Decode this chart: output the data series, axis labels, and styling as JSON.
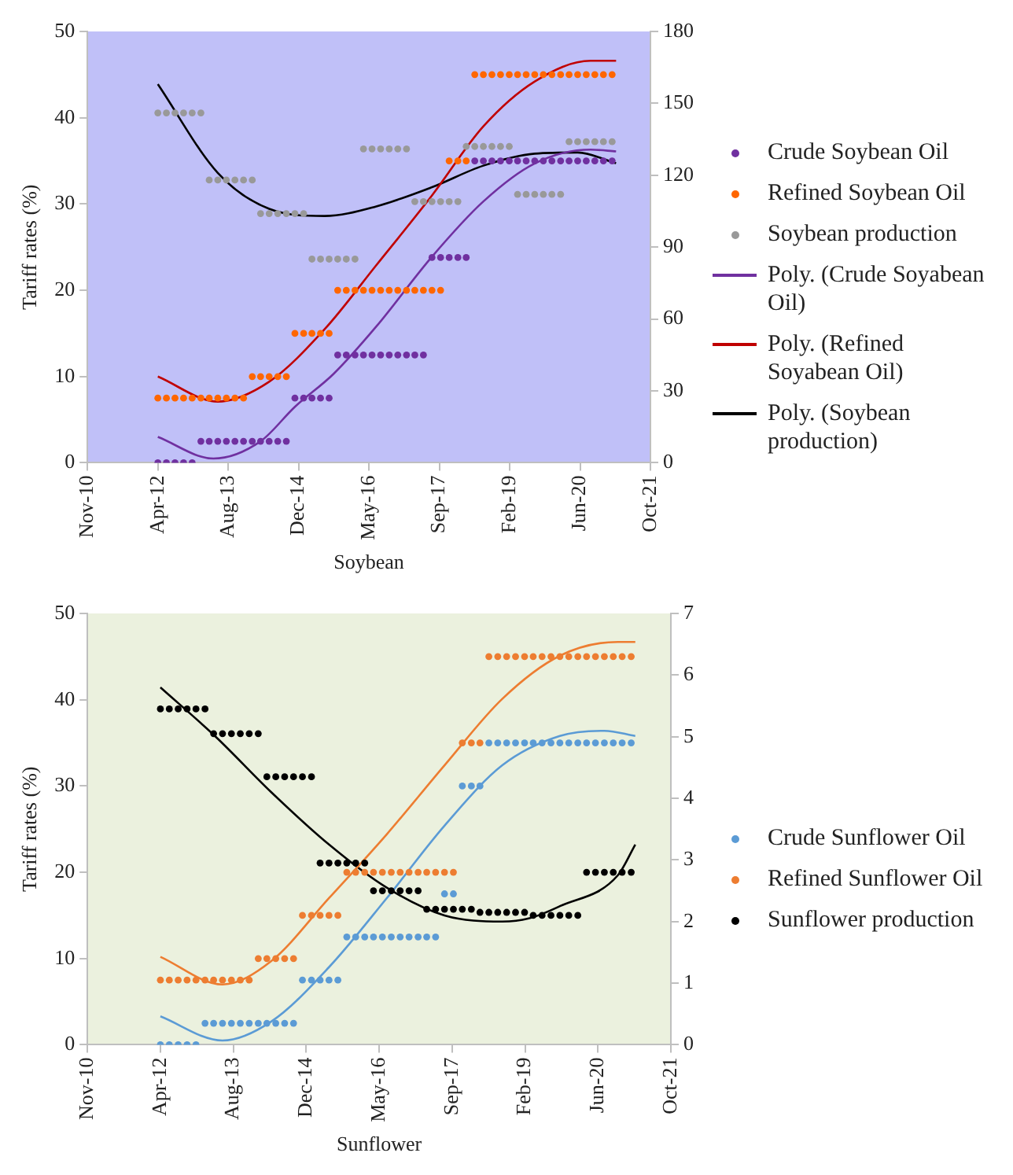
{
  "chart_data": [
    {
      "type": "scatter",
      "xlabel": "Soybean",
      "ylabel": "Tariff rates (%)",
      "marker": "circle",
      "legend": "right",
      "x": [
        "2012-04",
        "2012-06",
        "2012-08",
        "2012-10",
        "2012-12",
        "2013-02",
        "2013-04",
        "2013-06",
        "2013-08",
        "2013-10",
        "2013-12",
        "2014-02",
        "2014-04",
        "2014-06",
        "2014-08",
        "2014-10",
        "2014-12",
        "2015-02",
        "2015-04",
        "2015-06",
        "2015-08",
        "2015-10",
        "2015-12",
        "2016-02",
        "2016-04",
        "2016-06",
        "2016-08",
        "2016-10",
        "2016-12",
        "2017-02",
        "2017-04",
        "2017-06",
        "2017-08",
        "2017-10",
        "2017-12",
        "2018-02",
        "2018-04",
        "2018-06",
        "2018-08",
        "2018-10",
        "2018-12",
        "2019-02",
        "2019-04",
        "2019-06",
        "2019-08",
        "2019-10",
        "2019-12",
        "2020-02",
        "2020-04",
        "2020-06",
        "2020-08",
        "2020-10",
        "2020-12",
        "2021-02"
      ],
      "xlim": [
        "2010-11-18",
        "2021-10-31"
      ],
      "xticks": [
        {
          "value": "2010-11-18",
          "label": "Nov-10"
        },
        {
          "value": "2012-04-01",
          "label": "Apr-12"
        },
        {
          "value": "2013-08-14",
          "label": "Aug-13"
        },
        {
          "value": "2014-12-27",
          "label": "Dec-14"
        },
        {
          "value": "2016-05-10",
          "label": "May-16"
        },
        {
          "value": "2017-09-22",
          "label": "Sep-17"
        },
        {
          "value": "2019-02-04",
          "label": "Feb-19"
        },
        {
          "value": "2020-06-18",
          "label": "Jun-20"
        },
        {
          "value": "2021-10-31",
          "label": "Oct-21"
        }
      ],
      "ylim": [
        0,
        50
      ],
      "yticks": [
        0,
        10,
        20,
        30,
        40,
        50
      ],
      "y2lim": [
        0,
        180
      ],
      "y2ticks": [
        0,
        30,
        60,
        90,
        120,
        150,
        180
      ],
      "series": [
        {
          "name": "Crude Soybean Oil",
          "color": "#7030a0",
          "values": [
            0,
            0,
            0,
            0,
            0,
            2.5,
            2.5,
            2.5,
            2.5,
            2.5,
            2.5,
            2.5,
            2.5,
            2.5,
            2.5,
            2.5,
            7.5,
            7.5,
            7.5,
            7.5,
            7.5,
            12.5,
            12.5,
            12.5,
            12.5,
            12.5,
            12.5,
            12.5,
            12.5,
            12.5,
            12.5,
            12.5,
            23.8,
            23.8,
            23.8,
            23.8,
            23.8,
            35,
            35,
            35,
            35,
            35,
            35,
            35,
            35,
            35,
            35,
            35,
            35,
            35,
            35,
            35,
            35,
            35
          ]
        },
        {
          "name": "Refined Soybean Oil",
          "color": "#ff6600",
          "values": [
            7.5,
            7.5,
            7.5,
            7.5,
            7.5,
            7.5,
            7.5,
            7.5,
            7.5,
            7.5,
            7.5,
            10,
            10,
            10,
            10,
            10,
            15,
            15,
            15,
            15,
            15,
            20,
            20,
            20,
            20,
            20,
            20,
            20,
            20,
            20,
            20,
            20,
            20,
            20,
            35,
            35,
            35,
            45,
            45,
            45,
            45,
            45,
            45,
            45,
            45,
            45,
            45,
            45,
            45,
            45,
            45,
            45,
            45,
            45
          ]
        },
        {
          "name": "Soybean production",
          "color": "#999999",
          "axis": "y2",
          "values": [
            146,
            146,
            146,
            146,
            146,
            146,
            118,
            118,
            118,
            118,
            118,
            118,
            104,
            104,
            104,
            104,
            104,
            104,
            85,
            85,
            85,
            85,
            85,
            85,
            131,
            131,
            131,
            131,
            131,
            131,
            109,
            109,
            109,
            109,
            109,
            109,
            132,
            132,
            132,
            132,
            132,
            132,
            112,
            112,
            112,
            112,
            112,
            112,
            134,
            134,
            134,
            134,
            134,
            134
          ]
        },
        {
          "name": "Poly. (Crude Soyabean Oil)",
          "type": "line",
          "marker": "none",
          "color": "#7030a0",
          "x": [
            "2012-04",
            "2013-05",
            "2014-04",
            "2014-12",
            "2015-09",
            "2016-07",
            "2017-08",
            "2018-08",
            "2019-08",
            "2020-09",
            "2021-03"
          ],
          "values": [
            3,
            0.5,
            2.5,
            6.5,
            10.3,
            15.8,
            23.9,
            30.3,
            34.7,
            36.3,
            36.1
          ]
        },
        {
          "name": "Poly. (Refined Soyabean Oil)",
          "type": "line",
          "marker": "none",
          "color": "#c00000",
          "x": [
            "2012-04",
            "2013-06",
            "2014-06",
            "2015-07",
            "2016-07",
            "2017-08",
            "2018-08",
            "2019-08",
            "2020-09",
            "2021-03"
          ],
          "values": [
            10,
            7.1,
            9.4,
            15.5,
            22.9,
            31,
            39,
            44.2,
            46.6,
            46.6
          ]
        },
        {
          "name": "Poly. (Soybean production)",
          "type": "line",
          "marker": "none",
          "color": "#000000",
          "axis": "y2",
          "x": [
            "2012-04",
            "2013-06",
            "2014-06",
            "2015-07",
            "2016-07",
            "2017-08",
            "2018-08",
            "2019-08",
            "2020-06",
            "2021-03"
          ],
          "values": [
            158,
            121,
            106,
            103,
            107,
            115,
            124,
            129,
            129.5,
            125
          ]
        }
      ]
    },
    {
      "type": "scatter",
      "xlabel": "Sunflower",
      "ylabel": "Tariff rates (%)",
      "marker": "circle",
      "legend": "right",
      "x": [
        "2012-04",
        "2012-06",
        "2012-08",
        "2012-10",
        "2012-12",
        "2013-02",
        "2013-04",
        "2013-06",
        "2013-08",
        "2013-10",
        "2013-12",
        "2014-02",
        "2014-04",
        "2014-06",
        "2014-08",
        "2014-10",
        "2014-12",
        "2015-02",
        "2015-04",
        "2015-06",
        "2015-08",
        "2015-10",
        "2015-12",
        "2016-02",
        "2016-04",
        "2016-06",
        "2016-08",
        "2016-10",
        "2016-12",
        "2017-02",
        "2017-04",
        "2017-06",
        "2017-08",
        "2017-10",
        "2017-12",
        "2018-02",
        "2018-04",
        "2018-06",
        "2018-08",
        "2018-10",
        "2018-12",
        "2019-02",
        "2019-04",
        "2019-06",
        "2019-08",
        "2019-10",
        "2019-12",
        "2020-02",
        "2020-04",
        "2020-06",
        "2020-08",
        "2020-10",
        "2020-12",
        "2021-02"
      ],
      "xlim": [
        "2010-11-18",
        "2021-10-31"
      ],
      "xticks": [
        {
          "value": "2010-11-18",
          "label": "Nov-10"
        },
        {
          "value": "2012-04-01",
          "label": "Apr-12"
        },
        {
          "value": "2013-08-14",
          "label": "Aug-13"
        },
        {
          "value": "2014-12-27",
          "label": "Dec-14"
        },
        {
          "value": "2016-05-10",
          "label": "May-16"
        },
        {
          "value": "2017-09-22",
          "label": "Sep-17"
        },
        {
          "value": "2019-02-04",
          "label": "Feb-19"
        },
        {
          "value": "2020-06-18",
          "label": "Jun-20"
        },
        {
          "value": "2021-10-31",
          "label": "Oct-21"
        }
      ],
      "ylim": [
        0,
        50
      ],
      "yticks": [
        0,
        10,
        20,
        30,
        40,
        50
      ],
      "y2lim": [
        0,
        7
      ],
      "y2ticks": [
        0,
        1,
        2,
        3,
        4,
        5,
        6,
        7
      ],
      "series": [
        {
          "name": "Crude Sunflower Oil",
          "color": "#5b9bd5",
          "values": [
            0,
            0,
            0,
            0,
            0,
            2.5,
            2.5,
            2.5,
            2.5,
            2.5,
            2.5,
            2.5,
            2.5,
            2.5,
            2.5,
            2.5,
            7.5,
            7.5,
            7.5,
            7.5,
            7.5,
            12.5,
            12.5,
            12.5,
            12.5,
            12.5,
            12.5,
            12.5,
            12.5,
            12.5,
            12.5,
            12.5,
            17.5,
            17.5,
            30,
            30,
            30,
            35,
            35,
            35,
            35,
            35,
            35,
            35,
            35,
            35,
            35,
            35,
            35,
            35,
            35,
            35,
            35,
            35
          ]
        },
        {
          "name": "Refined Sunflower Oil",
          "color": "#ed7d31",
          "values": [
            7.5,
            7.5,
            7.5,
            7.5,
            7.5,
            7.5,
            7.5,
            7.5,
            7.5,
            7.5,
            7.5,
            10,
            10,
            10,
            10,
            10,
            15,
            15,
            15,
            15,
            15,
            20,
            20,
            20,
            20,
            20,
            20,
            20,
            20,
            20,
            20,
            20,
            20,
            20,
            35,
            35,
            35,
            45,
            45,
            45,
            45,
            45,
            45,
            45,
            45,
            45,
            45,
            45,
            45,
            45,
            45,
            45,
            45,
            45
          ]
        },
        {
          "name": "Sunflower production",
          "color": "#000000",
          "axis": "y2",
          "values": [
            5.45,
            5.45,
            5.45,
            5.45,
            5.45,
            5.45,
            5.05,
            5.05,
            5.05,
            5.05,
            5.05,
            5.05,
            4.35,
            4.35,
            4.35,
            4.35,
            4.35,
            4.35,
            2.95,
            2.95,
            2.95,
            2.95,
            2.95,
            2.95,
            2.5,
            2.5,
            2.5,
            2.5,
            2.5,
            2.5,
            2.2,
            2.2,
            2.2,
            2.2,
            2.2,
            2.2,
            2.15,
            2.15,
            2.15,
            2.15,
            2.15,
            2.15,
            2.1,
            2.1,
            2.1,
            2.1,
            2.1,
            2.1,
            2.8,
            2.8,
            2.8,
            2.8,
            2.8,
            2.8
          ]
        },
        {
          "type": "line",
          "marker": "none",
          "color": "#5b9bd5",
          "x": [
            "2012-04",
            "2013-06",
            "2014-05",
            "2015-06",
            "2016-07",
            "2017-08",
            "2018-09",
            "2019-10",
            "2020-08",
            "2021-03"
          ],
          "values": [
            3.3,
            0.5,
            2.7,
            9,
            17,
            25.4,
            32.4,
            35.8,
            36.4,
            35.8
          ]
        },
        {
          "type": "line",
          "marker": "none",
          "color": "#ed7d31",
          "x": [
            "2012-04",
            "2013-06",
            "2014-05",
            "2015-06",
            "2016-07",
            "2017-08",
            "2018-09",
            "2019-10",
            "2020-11",
            "2021-03"
          ],
          "values": [
            10.2,
            7,
            9.7,
            17,
            24.4,
            32.4,
            40.1,
            45.1,
            46.7,
            46.7
          ]
        },
        {
          "type": "line",
          "marker": "none",
          "color": "#000000",
          "axis": "y2",
          "x": [
            "2012-04",
            "2013-04-15",
            "2014-05",
            "2015-06",
            "2016-07",
            "2017-08",
            "2018-09",
            "2019-03",
            "2019-10",
            "2020-11",
            "2021-03"
          ],
          "values": [
            5.8,
            5,
            4.1,
            3.25,
            2.55,
            2.1,
            2,
            2.05,
            2.25,
            2.75,
            3.25
          ]
        }
      ]
    }
  ]
}
